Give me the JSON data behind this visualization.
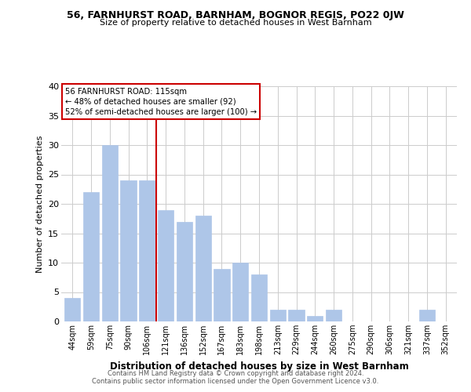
{
  "title1": "56, FARNHURST ROAD, BARNHAM, BOGNOR REGIS, PO22 0JW",
  "title2": "Size of property relative to detached houses in West Barnham",
  "xlabel": "Distribution of detached houses by size in West Barnham",
  "ylabel": "Number of detached properties",
  "categories": [
    "44sqm",
    "59sqm",
    "75sqm",
    "90sqm",
    "106sqm",
    "121sqm",
    "136sqm",
    "152sqm",
    "167sqm",
    "183sqm",
    "198sqm",
    "213sqm",
    "229sqm",
    "244sqm",
    "260sqm",
    "275sqm",
    "290sqm",
    "306sqm",
    "321sqm",
    "337sqm",
    "352sqm"
  ],
  "values": [
    4,
    22,
    30,
    24,
    24,
    19,
    17,
    18,
    9,
    10,
    8,
    2,
    2,
    1,
    2,
    0,
    0,
    0,
    0,
    2,
    0
  ],
  "bar_color": "#aec6e8",
  "bar_edge_color": "#aec6e8",
  "reference_line_color": "#cc0000",
  "annotation_title": "56 FARNHURST ROAD: 115sqm",
  "annotation_line1": "← 48% of detached houses are smaller (92)",
  "annotation_line2": "52% of semi-detached houses are larger (100) →",
  "annotation_box_color": "#ffffff",
  "annotation_box_edge": "#cc0000",
  "ylim": [
    0,
    40
  ],
  "yticks": [
    0,
    5,
    10,
    15,
    20,
    25,
    30,
    35,
    40
  ],
  "footnote1": "Contains HM Land Registry data © Crown copyright and database right 2024.",
  "footnote2": "Contains public sector information licensed under the Open Government Licence v3.0.",
  "background_color": "#ffffff",
  "grid_color": "#cccccc"
}
